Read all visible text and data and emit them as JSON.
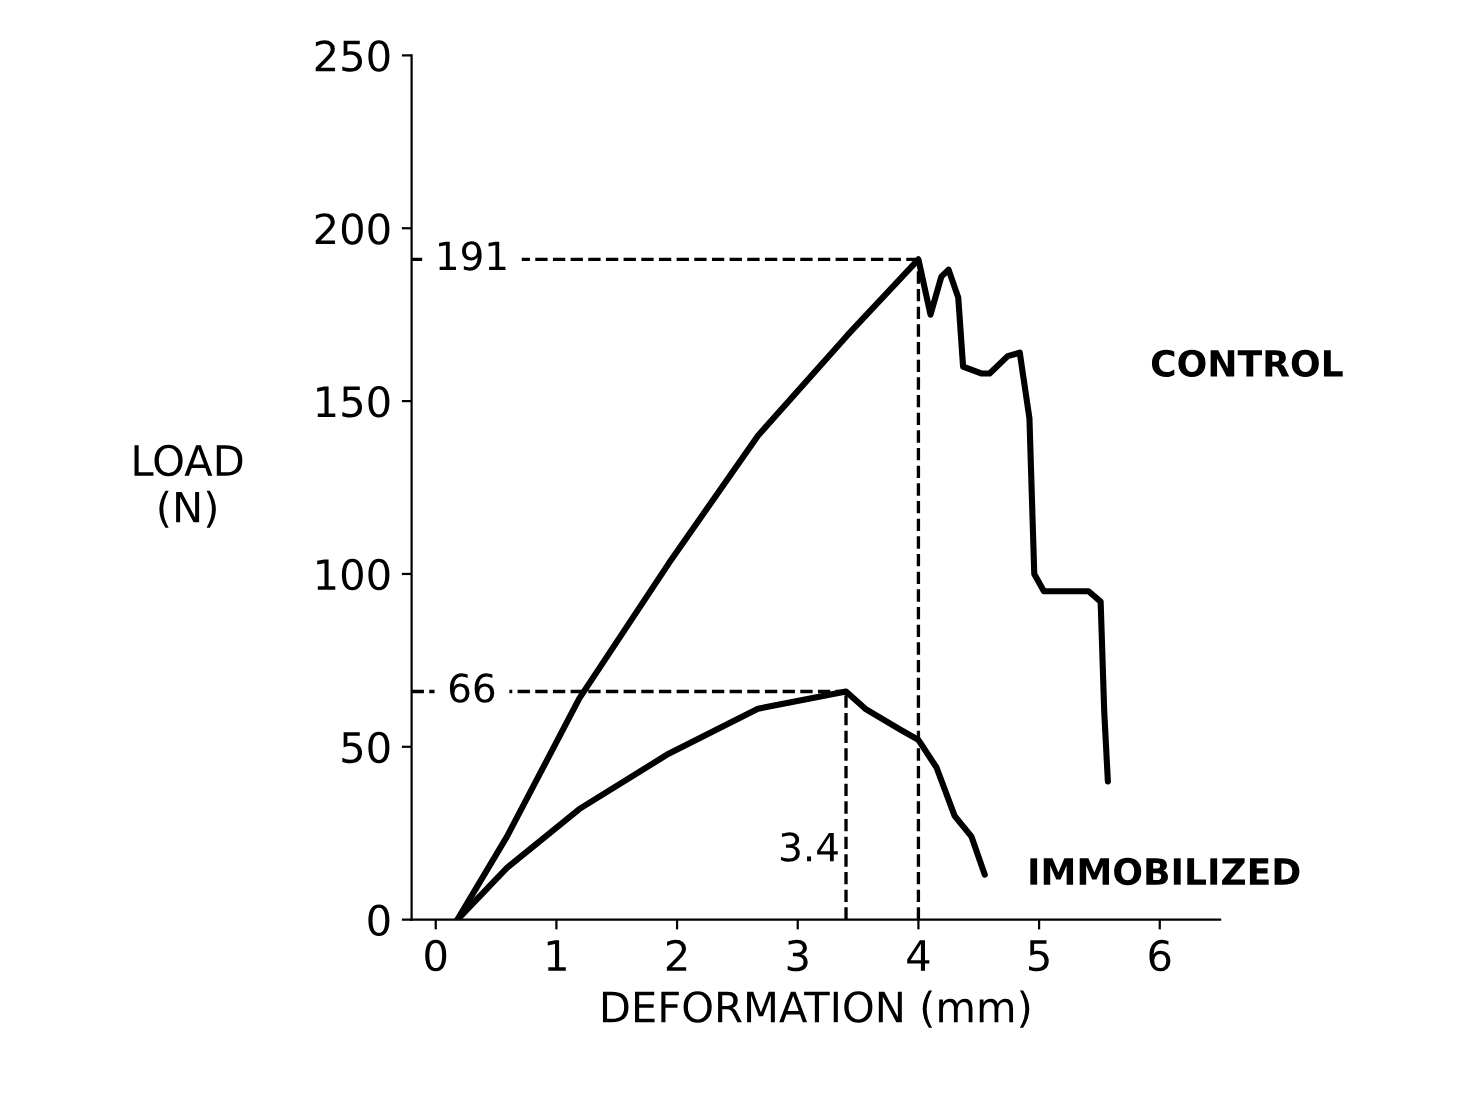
{
  "chart_data": {
    "type": "line",
    "xlabel": "DEFORMATION (mm)",
    "ylabel": "LOAD\n(N)",
    "xlim": [
      -0.2,
      6.5
    ],
    "ylim": [
      0,
      250
    ],
    "xticks": [
      0,
      1,
      2,
      3,
      4,
      5,
      6
    ],
    "yticks": [
      0,
      50,
      100,
      150,
      200,
      250
    ],
    "grid": false,
    "legend": false,
    "marker": "none",
    "line_style": "solid",
    "series": [
      {
        "name": "CONTROL",
        "color": "#000000",
        "x": [
          0.18,
          0.59,
          1.19,
          1.93,
          2.67,
          3.41,
          4.0,
          4.1,
          4.19,
          4.25,
          4.33,
          4.37,
          4.52,
          4.59,
          4.74,
          4.84,
          4.92,
          4.96,
          5.04,
          5.41,
          5.51,
          5.54,
          5.57
        ],
        "values": [
          0,
          24,
          64,
          103,
          140,
          169,
          191,
          175,
          186,
          188,
          180,
          160,
          158,
          158,
          163,
          164,
          145,
          100,
          95,
          95,
          92,
          60,
          40
        ]
      },
      {
        "name": "IMMOBILIZED",
        "color": "#000000",
        "x": [
          0.18,
          0.59,
          1.19,
          1.93,
          2.67,
          3.4,
          3.56,
          3.85,
          4.0,
          4.15,
          4.3,
          4.44,
          4.55
        ],
        "values": [
          0,
          15,
          32,
          48,
          61,
          66,
          61,
          55,
          52,
          44,
          30,
          24,
          13
        ]
      }
    ],
    "ref_lines": [
      {
        "axis": "y",
        "value": 191,
        "label": "191",
        "line_style": "dashed"
      },
      {
        "axis": "y",
        "value": 66,
        "label": "66",
        "line_style": "dashed"
      },
      {
        "axis": "x",
        "value": 4,
        "label": null,
        "line_style": "dashed"
      },
      {
        "axis": "x",
        "value": 3.4,
        "label": "3.4",
        "line_style": "dashed"
      }
    ]
  }
}
